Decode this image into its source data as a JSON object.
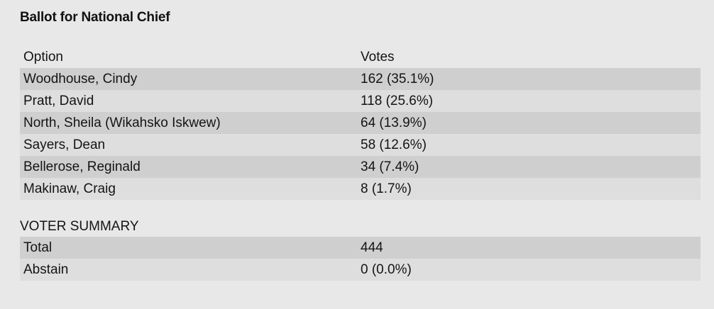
{
  "title": "Ballot for National Chief",
  "results": {
    "header": {
      "option": "Option",
      "votes": "Votes"
    },
    "rows": [
      {
        "option": "Woodhouse, Cindy",
        "votes": "162 (35.1%)"
      },
      {
        "option": "Pratt, David",
        "votes": "118 (25.6%)"
      },
      {
        "option": "North, Sheila (Wikahsko Iskwew)",
        "votes": "64 (13.9%)"
      },
      {
        "option": "Sayers, Dean",
        "votes": "58 (12.6%)"
      },
      {
        "option": "Bellerose, Reginald",
        "votes": "34 (7.4%)"
      },
      {
        "option": "Makinaw, Craig",
        "votes": "8 (1.7%)"
      }
    ]
  },
  "summary": {
    "label": "VOTER SUMMARY",
    "rows": [
      {
        "label": "Total",
        "value": "444"
      },
      {
        "label": "Abstain",
        "value": "0 (0.0%)"
      }
    ]
  }
}
